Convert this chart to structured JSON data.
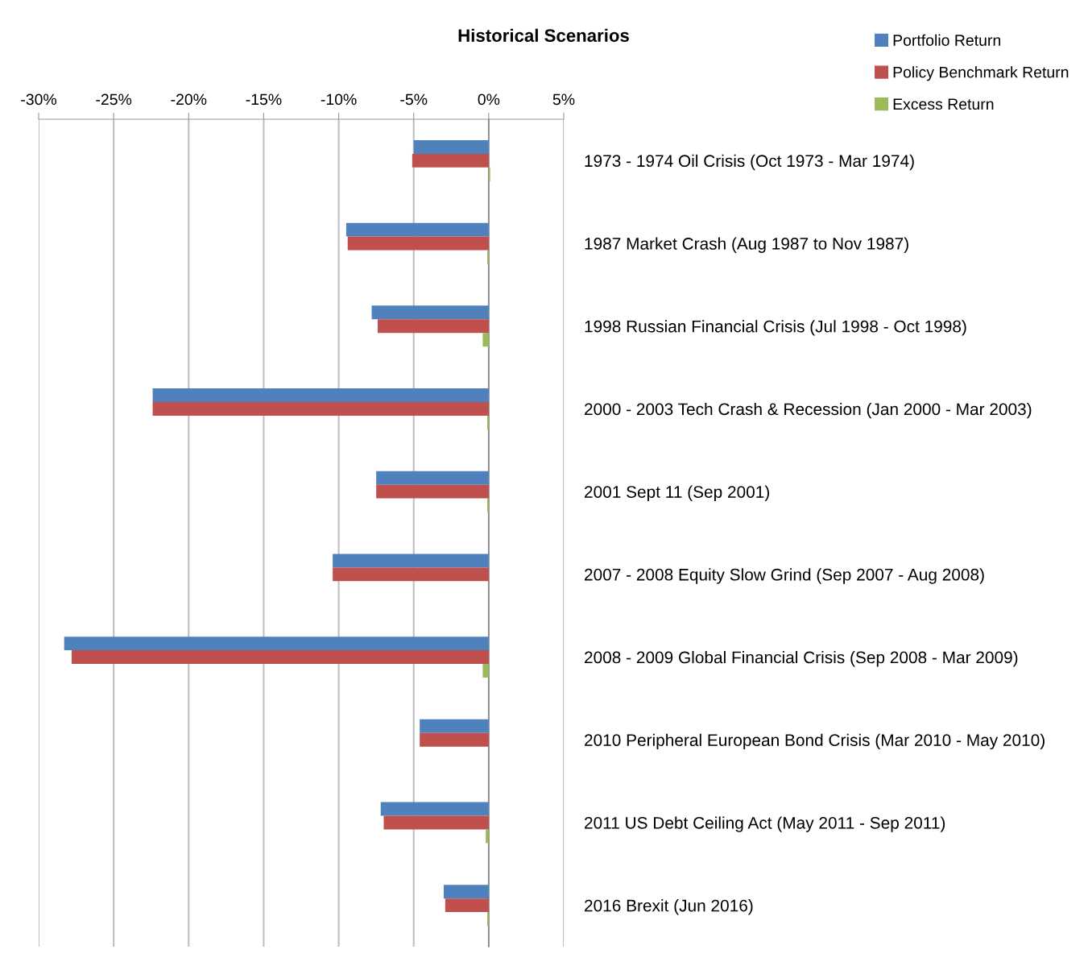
{
  "chart_data": {
    "type": "bar",
    "orientation": "horizontal",
    "title": "Historical Scenarios",
    "categories": [
      "1973 - 1974 Oil Crisis (Oct 1973 - Mar 1974)",
      "1987 Market Crash (Aug 1987 to Nov 1987)",
      "1998 Russian Financial Crisis (Jul 1998 - Oct 1998)",
      "2000 - 2003 Tech Crash & Recession (Jan 2000 - Mar 2003)",
      "2001 Sept 11 (Sep 2001)",
      "2007 - 2008 Equity Slow Grind (Sep 2007 - Aug 2008)",
      "2008 - 2009 Global Financial Crisis (Sep 2008 - Mar 2009)",
      "2010 Peripheral European Bond Crisis (Mar 2010 - May 2010)",
      "2011 US Debt Ceiling Act (May 2011 - Sep 2011)",
      "2016 Brexit (Jun 2016)"
    ],
    "series": [
      {
        "name": "Portfolio Return",
        "color": "#4f81bd",
        "values": [
          -5.0,
          -9.5,
          -7.8,
          -22.4,
          -7.5,
          -10.4,
          -28.3,
          -4.6,
          -7.2,
          -3.0
        ]
      },
      {
        "name": "Policy Benchmark Return",
        "color": "#c0504d",
        "values": [
          -5.1,
          -9.4,
          -7.4,
          -22.4,
          -7.5,
          -10.4,
          -27.8,
          -4.6,
          -7.0,
          -2.9
        ]
      },
      {
        "name": "Excess Return",
        "color": "#9bbb59",
        "values": [
          0.1,
          -0.1,
          -0.4,
          -0.1,
          -0.1,
          0.0,
          -0.4,
          0.0,
          -0.2,
          -0.1
        ]
      }
    ],
    "xlim": [
      -30,
      5
    ],
    "xticks": [
      {
        "value": -30,
        "label": "-30%"
      },
      {
        "value": -25,
        "label": "-25%"
      },
      {
        "value": -20,
        "label": "-20%"
      },
      {
        "value": -15,
        "label": "-15%"
      },
      {
        "value": -10,
        "label": "-10%"
      },
      {
        "value": -5,
        "label": "-5%"
      },
      {
        "value": 0,
        "label": "0%"
      },
      {
        "value": 5,
        "label": "5%"
      }
    ],
    "grid": "x",
    "legend": "top right"
  }
}
